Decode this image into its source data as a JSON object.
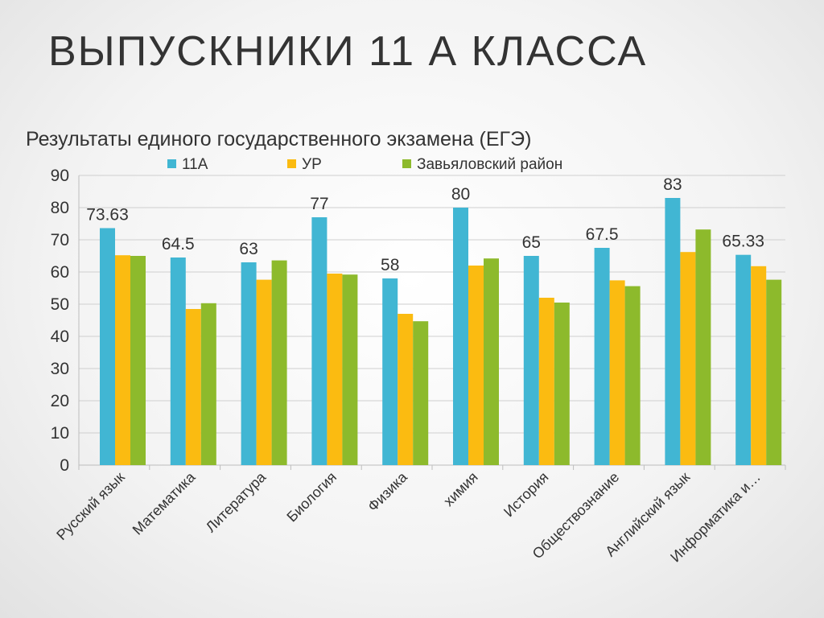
{
  "slide": {
    "title": "ВЫПУСКНИКИ 11 А КЛАССА"
  },
  "chart_data": {
    "type": "bar",
    "title": "Результаты единого государственного экзамена  (ЕГЭ)",
    "categories": [
      "Русский язык",
      "Математика",
      "Литература",
      "Биология",
      "Физика",
      "химия",
      "История",
      "Обществознание",
      "Английский язык",
      "Информатика и…"
    ],
    "series": [
      {
        "name": "11А",
        "color": "#41b6d3",
        "values": [
          73.63,
          64.5,
          63,
          77,
          58,
          80,
          65,
          67.5,
          83,
          65.33
        ],
        "labels": [
          "73.63",
          "64.5",
          "63",
          "77",
          "58",
          "80",
          "65",
          "67.5",
          "83",
          "65.33"
        ]
      },
      {
        "name": "УР",
        "color": "#fbbb11",
        "values": [
          65.2,
          48.5,
          57.6,
          59.5,
          47,
          62,
          52,
          57.4,
          66.2,
          61.8
        ]
      },
      {
        "name": "Завьяловский район",
        "color": "#8dba2c",
        "values": [
          65,
          50.3,
          63.6,
          59.2,
          44.7,
          64.2,
          50.5,
          55.6,
          73.2,
          57.6
        ]
      }
    ],
    "yticks": [
      "0",
      "10",
      "20",
      "30",
      "40",
      "50",
      "60",
      "70",
      "80",
      "90"
    ],
    "ylim": [
      0,
      90
    ],
    "grid": true,
    "legend_position": "top"
  }
}
